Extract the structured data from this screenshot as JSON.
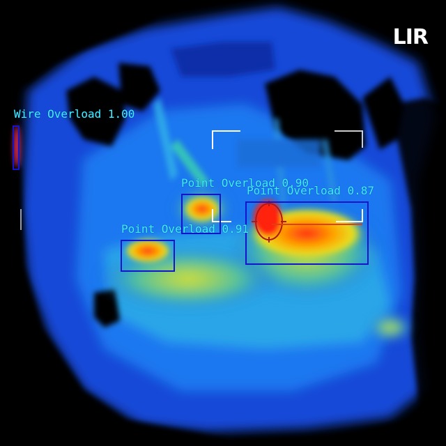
{
  "logo": {
    "text": "LIR"
  },
  "detections": [
    {
      "label": "Wire Overload 1.00"
    },
    {
      "label": "Point Overload 0.90"
    },
    {
      "label": "Point Overload 0.87"
    },
    {
      "label": "Point Overload 0.91"
    }
  ],
  "colors": {
    "box": "#1414c8",
    "label": "#3ff0ff",
    "reticle": "#ffffff",
    "marker": "#b01818"
  }
}
